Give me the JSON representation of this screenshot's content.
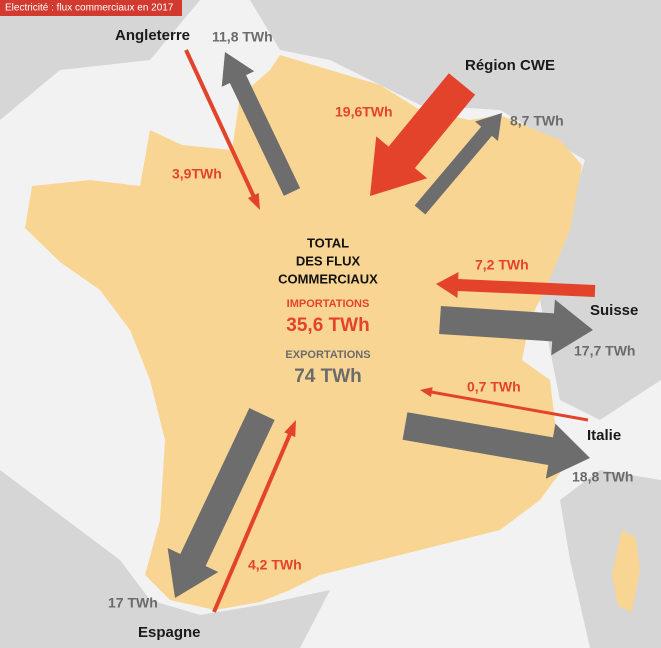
{
  "header": {
    "tag": "Electricité : flux commerciaux en 2017"
  },
  "regions": [
    {
      "name": "Angleterre",
      "export": "11,8 TWh",
      "import": "3,9TWh"
    },
    {
      "name": "Région CWE",
      "import": "19,6TWh",
      "export": "8,7 TWh"
    },
    {
      "name": "Suisse",
      "import": "7,2 TWh",
      "export": "17,7 TWh"
    },
    {
      "name": "Italie",
      "import": "0,7 TWh",
      "export": "18,8 TWh"
    },
    {
      "name": "Espagne",
      "export": "17 TWh",
      "import": "4,2 TWh"
    }
  ],
  "summary": {
    "title": [
      "TOTAL",
      "DES FLUX",
      "COMMERCIAUX"
    ],
    "imports_label": "IMPORTATIONS",
    "imports_value": "35,6 TWh",
    "exports_label": "EXPORTATIONS",
    "exports_value": "74 TWh"
  }
}
